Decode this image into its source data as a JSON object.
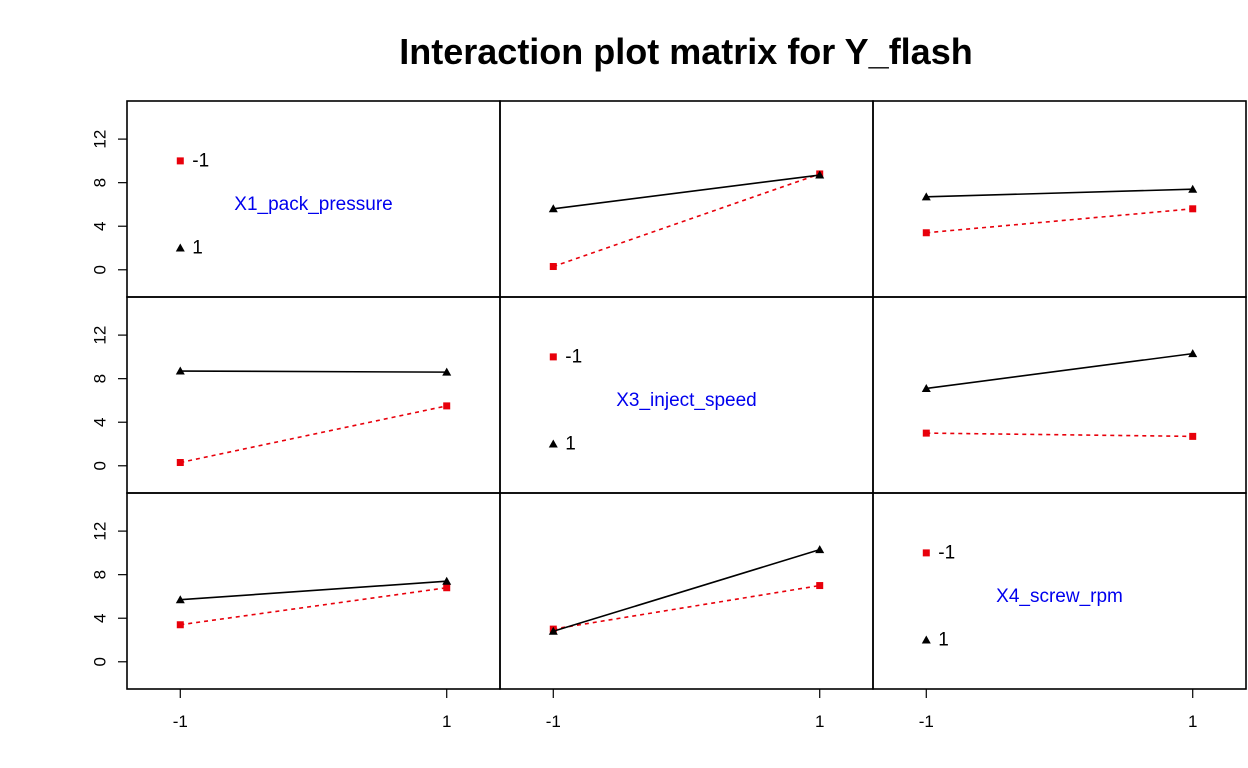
{
  "colors": {
    "low": "#e8000b",
    "high": "#000000",
    "label": "#0000ee"
  },
  "chart_data": {
    "type": "line",
    "title": "Interaction plot matrix for Y_flash",
    "x_ticks": [
      "-1",
      "1"
    ],
    "y_ticks": [
      "0",
      "4",
      "8",
      "12"
    ],
    "ylim": [
      -2.5,
      15.5
    ],
    "xlim": [
      -1.4,
      1.4
    ],
    "factors": [
      "X1_pack_pressure",
      "X3_inject_speed",
      "X4_screw_rpm"
    ],
    "legend_levels": [
      "-1",
      "1"
    ],
    "panels": [
      {
        "row": 0,
        "col": 1,
        "series": [
          {
            "level": "-1",
            "x": [
              -1,
              1
            ],
            "y": [
              0.3,
              8.8
            ]
          },
          {
            "level": "1",
            "x": [
              -1,
              1
            ],
            "y": [
              5.6,
              8.7
            ]
          }
        ]
      },
      {
        "row": 0,
        "col": 2,
        "series": [
          {
            "level": "-1",
            "x": [
              -1,
              1
            ],
            "y": [
              3.4,
              5.6
            ]
          },
          {
            "level": "1",
            "x": [
              -1,
              1
            ],
            "y": [
              6.7,
              7.4
            ]
          }
        ]
      },
      {
        "row": 1,
        "col": 0,
        "series": [
          {
            "level": "-1",
            "x": [
              -1,
              1
            ],
            "y": [
              0.3,
              5.5
            ]
          },
          {
            "level": "1",
            "x": [
              -1,
              1
            ],
            "y": [
              8.7,
              8.6
            ]
          }
        ]
      },
      {
        "row": 1,
        "col": 2,
        "series": [
          {
            "level": "-1",
            "x": [
              -1,
              1
            ],
            "y": [
              3.0,
              2.7
            ]
          },
          {
            "level": "1",
            "x": [
              -1,
              1
            ],
            "y": [
              7.1,
              10.3
            ]
          }
        ]
      },
      {
        "row": 2,
        "col": 0,
        "series": [
          {
            "level": "-1",
            "x": [
              -1,
              1
            ],
            "y": [
              3.4,
              6.8
            ]
          },
          {
            "level": "1",
            "x": [
              -1,
              1
            ],
            "y": [
              5.7,
              7.4
            ]
          }
        ]
      },
      {
        "row": 2,
        "col": 1,
        "series": [
          {
            "level": "-1",
            "x": [
              -1,
              1
            ],
            "y": [
              3.0,
              7.0
            ]
          },
          {
            "level": "1",
            "x": [
              -1,
              1
            ],
            "y": [
              2.8,
              10.3
            ]
          }
        ]
      }
    ]
  }
}
